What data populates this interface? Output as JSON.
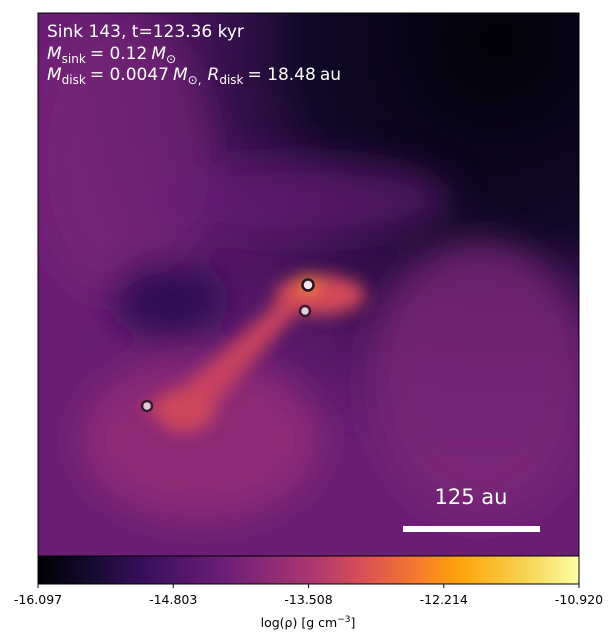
{
  "chart_data": {
    "type": "image",
    "title": "Sink 143, t=123.36 kyr",
    "mass_sink": {
      "symbol": "M",
      "subscript": "sink",
      "value": "= 0.12",
      "unit": "M",
      "unit_subscript": "⊙"
    },
    "mass_disk": {
      "symbol": "M",
      "subscript": "disk",
      "value": "= 0.0047",
      "unit": "M",
      "unit_subscript": "⊙,"
    },
    "radius_disk": {
      "symbol": "R",
      "subscript": "disk",
      "value": "= 18.48",
      "unit": "au"
    },
    "scale_bar": "125 au",
    "colorbar": {
      "label": "log(ρ) [g cm",
      "label_superscript": "−3",
      "label_end": "]",
      "clim": [
        -16.097,
        -10.92
      ],
      "ticks": [
        -16.097,
        -14.803,
        -13.508,
        -12.214,
        {
          "value": -10.92,
          "label": "-10.920"
        }
      ]
    }
  }
}
